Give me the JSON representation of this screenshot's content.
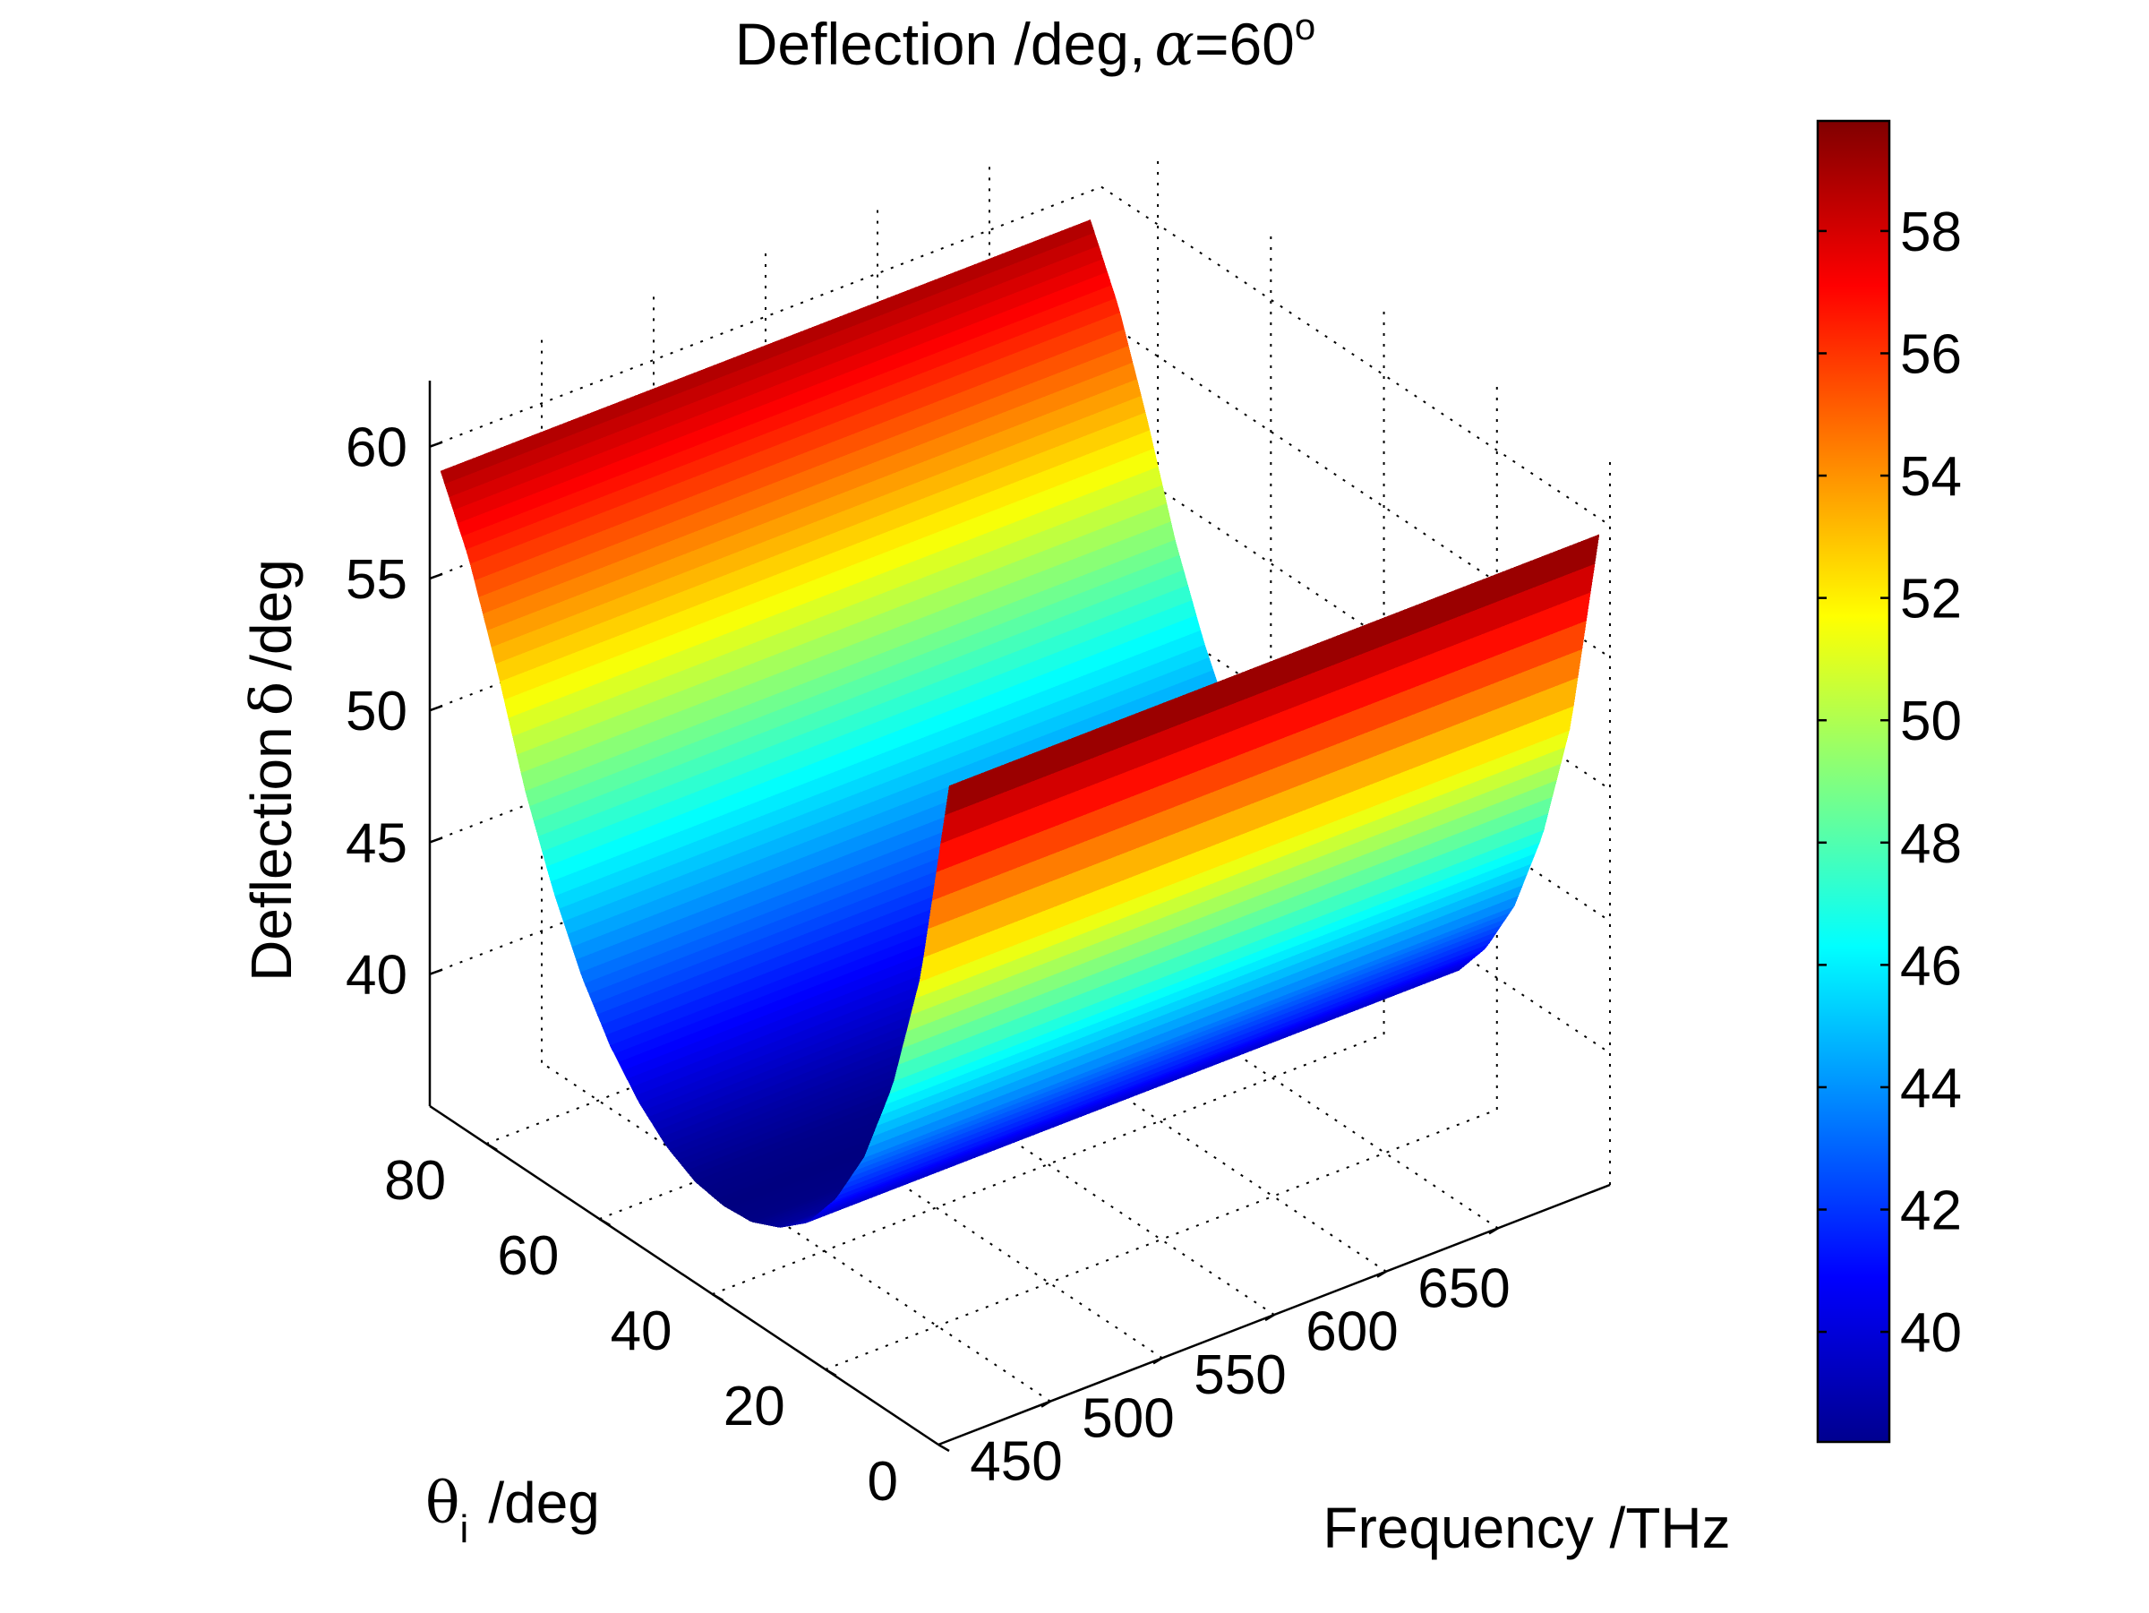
{
  "chart_data": {
    "type": "surface3d",
    "title": {
      "prefix": "Deflection /deg,",
      "alpha_symbol": "α",
      "value": "=60",
      "superscript": "o"
    },
    "xlabel": "Frequency /THz",
    "ylabel": {
      "symbol": "θ",
      "subscript": "i",
      "unit": "/deg"
    },
    "zlabel": {
      "prefix": "Deflection",
      "symbol": "δ",
      "unit": "/deg"
    },
    "xlim": [
      400,
      700
    ],
    "ylim": [
      0,
      90
    ],
    "zlim": [
      35,
      62.5
    ],
    "xticks": [
      450,
      500,
      550,
      600,
      650
    ],
    "yticks": [
      0,
      20,
      40,
      60,
      80
    ],
    "zticks": [
      40,
      45,
      50,
      55,
      60
    ],
    "grid": true,
    "colormap": "jet",
    "colorbar": {
      "range": [
        38.2,
        59.8
      ],
      "ticks": [
        40,
        42,
        44,
        46,
        48,
        50,
        52,
        54,
        56,
        58
      ]
    },
    "surface": {
      "description_values": {
        "frequency_range": [
          405,
          695
        ],
        "theta_i_range": [
          0,
          90
        ],
        "min_deflection": 38.2,
        "max_deflection": 59.8
      },
      "theta_i": [
        0,
        5,
        10,
        15,
        20,
        25,
        30,
        35,
        40,
        45,
        50,
        55,
        60,
        65,
        70,
        75,
        80,
        85,
        90
      ],
      "deflection_at_405THz": [
        59.8,
        51.9,
        47.0,
        43.6,
        41.3,
        39.7,
        38.8,
        38.3,
        38.2,
        38.4,
        39.0,
        40.0,
        41.4,
        43.3,
        45.8,
        48.9,
        52.8,
        56.3,
        58.9
      ],
      "frequency_slope_per_THz": 0.0
    }
  },
  "colors": {
    "background": "#ffffff",
    "axis": "#000000"
  }
}
